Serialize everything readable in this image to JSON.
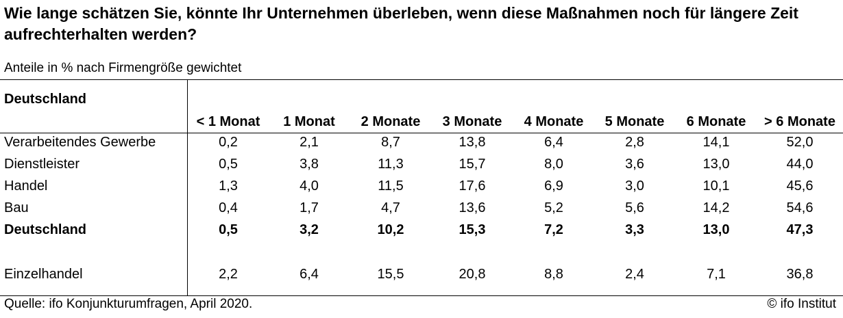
{
  "title": "Wie lange schätzen Sie, könnte Ihr Unternehmen überleben, wenn diese Maßnahmen noch für längere Zeit aufrechterhalten werden?",
  "subtitle": "Anteile in % nach Firmengröße gewichtet",
  "table": {
    "region_header": "Deutschland",
    "columns": [
      "< 1 Monat",
      "1 Monat",
      "2 Monate",
      "3 Monate",
      "4 Monate",
      "5 Monate",
      "6 Monate",
      "> 6 Monate"
    ],
    "rows": [
      {
        "label": "Verarbeitendes Gewerbe",
        "values": [
          "0,2",
          "2,1",
          "8,7",
          "13,8",
          "6,4",
          "2,8",
          "14,1",
          "52,0"
        ],
        "bold": false
      },
      {
        "label": "Dienstleister",
        "values": [
          "0,5",
          "3,8",
          "11,3",
          "15,7",
          "8,0",
          "3,6",
          "13,0",
          "44,0"
        ],
        "bold": false
      },
      {
        "label": "Handel",
        "values": [
          "1,3",
          "4,0",
          "11,5",
          "17,6",
          "6,9",
          "3,0",
          "10,1",
          "45,6"
        ],
        "bold": false
      },
      {
        "label": "Bau",
        "values": [
          "0,4",
          "1,7",
          "4,7",
          "13,6",
          "5,2",
          "5,6",
          "14,2",
          "54,6"
        ],
        "bold": false
      },
      {
        "label": "Deutschland",
        "values": [
          "0,5",
          "3,2",
          "10,2",
          "15,3",
          "7,2",
          "3,3",
          "13,0",
          "47,3"
        ],
        "bold": true
      },
      {
        "label": "Einzelhandel",
        "values": [
          "2,2",
          "6,4",
          "15,5",
          "20,8",
          "8,8",
          "2,4",
          "7,1",
          "36,8"
        ],
        "bold": false
      }
    ]
  },
  "footer": {
    "source": "Quelle: ifo Konjunkturumfragen, April 2020.",
    "copyright": "© ifo Institut"
  }
}
